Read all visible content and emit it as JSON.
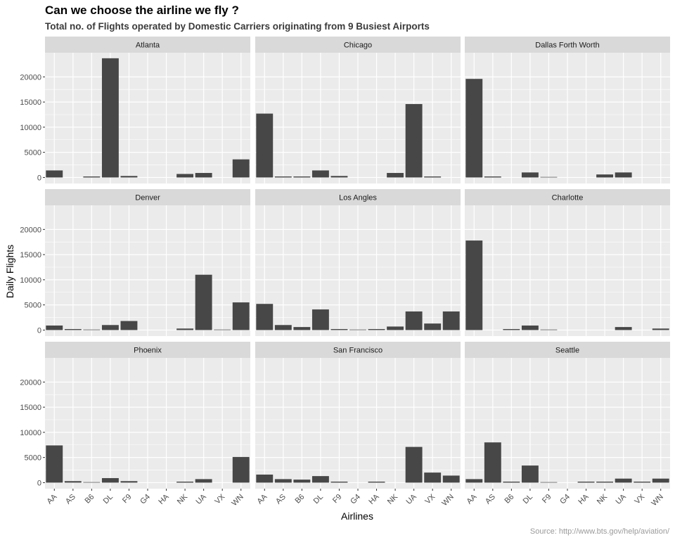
{
  "chart_data": {
    "type": "bar",
    "title": "Can we choose the airline we fly ?",
    "subtitle": "Total no. of Flights operated by Domestic Carriers originating from 9 Busiest Airports",
    "xlabel": "Airlines",
    "ylabel": "Daily Flights",
    "caption": "Source: http://www.bts.gov/help/aviation/",
    "categories": [
      "AA",
      "AS",
      "B6",
      "DL",
      "F9",
      "G4",
      "HA",
      "NK",
      "UA",
      "VX",
      "WN"
    ],
    "yticks": [
      0,
      5000,
      10000,
      15000,
      20000
    ],
    "ytick_labels": [
      "0",
      "5000",
      "10000",
      "15000",
      "20000"
    ],
    "ylim": [
      -1200,
      24800
    ],
    "grid": true,
    "colors": {
      "bar": "#474747",
      "panel_bg": "#ebebeb",
      "strip_bg": "#d9d9d9",
      "grid": "#ffffff"
    },
    "panels": [
      {
        "name": "Atlanta",
        "values": [
          1400,
          0,
          200,
          23700,
          300,
          0,
          0,
          700,
          900,
          0,
          3600
        ]
      },
      {
        "name": "Chicago",
        "values": [
          12700,
          200,
          200,
          1400,
          300,
          0,
          0,
          900,
          14600,
          200,
          0
        ]
      },
      {
        "name": "Dallas Forth Worth",
        "values": [
          19600,
          200,
          0,
          1000,
          100,
          0,
          0,
          600,
          1000,
          0,
          0
        ]
      },
      {
        "name": "Denver",
        "values": [
          900,
          200,
          100,
          1000,
          1800,
          0,
          0,
          300,
          11000,
          100,
          5500
        ]
      },
      {
        "name": "Los Angles",
        "values": [
          5200,
          1000,
          600,
          4100,
          200,
          100,
          200,
          700,
          3700,
          1300,
          3700
        ]
      },
      {
        "name": "Charlotte",
        "values": [
          17800,
          0,
          200,
          900,
          100,
          0,
          0,
          0,
          600,
          0,
          300
        ]
      },
      {
        "name": "Phoenix",
        "values": [
          7400,
          300,
          100,
          900,
          300,
          0,
          0,
          200,
          700,
          0,
          5100
        ]
      },
      {
        "name": "San Francisco",
        "values": [
          1600,
          700,
          600,
          1300,
          200,
          0,
          200,
          0,
          7100,
          2000,
          1400
        ]
      },
      {
        "name": "Seattle",
        "values": [
          700,
          8000,
          200,
          3400,
          100,
          0,
          200,
          200,
          800,
          200,
          800
        ]
      }
    ]
  }
}
